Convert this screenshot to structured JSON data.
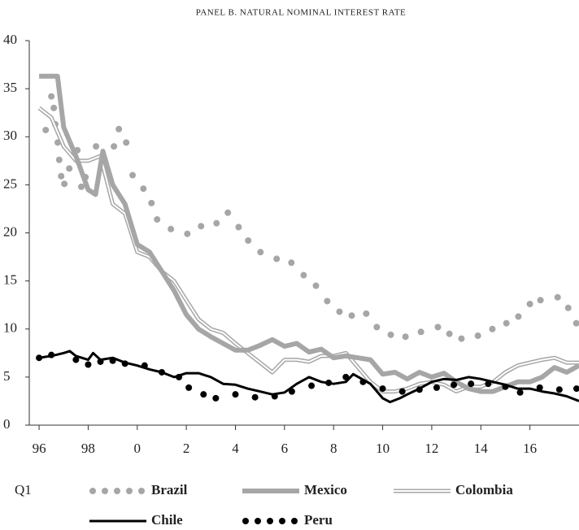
{
  "chart_data": {
    "type": "line",
    "title": "PANEL B. NATURAL NOMINAL INTEREST RATE",
    "x_note": "Q1",
    "xlim": [
      1995.6,
      2018
    ],
    "ylim": [
      0,
      40
    ],
    "xticks": [
      {
        "value": 1996,
        "label": "96"
      },
      {
        "value": 1998,
        "label": "98"
      },
      {
        "value": 2000,
        "label": "0"
      },
      {
        "value": 2002,
        "label": "2"
      },
      {
        "value": 2004,
        "label": "4"
      },
      {
        "value": 2006,
        "label": "6"
      },
      {
        "value": 2008,
        "label": "8"
      },
      {
        "value": 2010,
        "label": "10"
      },
      {
        "value": 2012,
        "label": "12"
      },
      {
        "value": 2014,
        "label": "14"
      },
      {
        "value": 2016,
        "label": "16"
      }
    ],
    "yticks": [
      0,
      5,
      10,
      15,
      20,
      25,
      30,
      35,
      40
    ],
    "series": [
      {
        "name": "Brazil",
        "color": "#a6a6a6",
        "style": "dotted",
        "x": [
          1996.27,
          1996.5,
          1996.6,
          1996.66,
          1996.76,
          1996.82,
          1996.9,
          1997.03,
          1997.23,
          1997.56,
          1997.72,
          1997.89,
          1998.32,
          1998.62,
          1999.05,
          1999.25,
          1999.55,
          1999.81,
          2000.25,
          2000.58,
          2000.81,
          2001.37,
          2002.04,
          2002.6,
          2003.23,
          2003.69,
          2004.13,
          2004.52,
          2005.02,
          2005.68,
          2006.28,
          2006.78,
          2007.28,
          2007.74,
          2008.24,
          2008.74,
          2009.33,
          2009.76,
          2010.33,
          2010.93,
          2011.56,
          2012.25,
          2012.72,
          2013.21,
          2013.88,
          2014.47,
          2015.04,
          2015.53,
          2016.0,
          2016.43,
          2017.13,
          2017.56,
          2017.89
        ],
        "values": [
          30.7,
          34.2,
          33.0,
          31.3,
          29.4,
          27.6,
          25.9,
          25.1,
          26.7,
          28.6,
          24.8,
          25.8,
          29.0,
          27.9,
          29.0,
          30.8,
          29.4,
          26.0,
          24.6,
          23.1,
          21.4,
          20.4,
          19.9,
          20.7,
          21.0,
          22.1,
          20.6,
          19.2,
          18.0,
          17.3,
          16.9,
          15.6,
          14.5,
          12.9,
          11.8,
          11.4,
          11.6,
          10.2,
          9.4,
          9.2,
          9.7,
          10.2,
          9.5,
          9.0,
          9.3,
          10.0,
          10.6,
          11.3,
          12.6,
          13.0,
          13.3,
          12.2,
          10.6
        ]
      },
      {
        "name": "Mexico",
        "color": "#a6a6a6",
        "style": "thick",
        "x": [
          1996,
          1996.75,
          1997,
          1997.5,
          1998,
          1998.3,
          1998.6,
          1999,
          1999.5,
          2000,
          2000.5,
          2001,
          2001.5,
          2002,
          2002.5,
          2003,
          2003.5,
          2004,
          2004.5,
          2005,
          2005.5,
          2006,
          2006.5,
          2007,
          2007.5,
          2008,
          2008.5,
          2009,
          2009.5,
          2010,
          2010.5,
          2011,
          2011.5,
          2012,
          2012.5,
          2013,
          2013.5,
          2014,
          2014.5,
          2015,
          2015.5,
          2016,
          2016.5,
          2017,
          2017.5,
          2018
        ],
        "values": [
          36.3,
          36.3,
          31,
          28,
          24.5,
          24,
          28.5,
          25,
          23,
          18.8,
          18,
          16,
          14,
          11.5,
          10,
          9.2,
          8.5,
          7.8,
          7.8,
          8.3,
          8.9,
          8.2,
          8.5,
          7.6,
          7.9,
          7,
          7.2,
          7,
          6.8,
          5.3,
          5.5,
          4.8,
          5.5,
          5.0,
          5.4,
          4.5,
          3.8,
          3.5,
          3.5,
          4.0,
          4.5,
          4.5,
          5.0,
          6.0,
          5.5,
          6.2
        ]
      },
      {
        "name": "Colombia",
        "color": "#a6a6a6",
        "style": "double",
        "x": [
          1996,
          1996.5,
          1997,
          1997.5,
          1998,
          1998.5,
          1999,
          1999.5,
          2000,
          2000.5,
          2001,
          2001.5,
          2002,
          2002.5,
          2003,
          2003.5,
          2004,
          2004.5,
          2005,
          2005.5,
          2006,
          2006.5,
          2007,
          2007.5,
          2008,
          2008.5,
          2009,
          2009.5,
          2010,
          2010.5,
          2011,
          2011.5,
          2012,
          2012.5,
          2013,
          2013.5,
          2014,
          2014.5,
          2015,
          2015.5,
          2016,
          2016.5,
          2017,
          2017.5,
          2018
        ],
        "values": [
          33,
          32,
          29,
          27.5,
          27.5,
          28,
          23,
          22,
          18,
          17.5,
          16,
          15,
          13,
          11,
          10,
          9.6,
          8.5,
          7.5,
          6.5,
          5.5,
          6.8,
          6.8,
          6.6,
          7.2,
          7.2,
          7.5,
          6,
          4.5,
          3.5,
          3.5,
          3.8,
          4.3,
          4.5,
          4.2,
          3.5,
          4.0,
          4.0,
          4.5,
          5.5,
          6.2,
          6.5,
          6.8,
          7,
          6.5,
          6.5
        ]
      },
      {
        "name": "Chile",
        "color": "#000000",
        "style": "solid",
        "x": [
          1996,
          1996.5,
          1997,
          1997.25,
          1997.5,
          1998,
          1998.2,
          1998.5,
          1999,
          1999.5,
          2000,
          2000.5,
          2001,
          2001.5,
          2002,
          2002.5,
          2003,
          2003.5,
          2004,
          2004.5,
          2005,
          2005.5,
          2006,
          2006.5,
          2007,
          2007.5,
          2008,
          2008.5,
          2008.8,
          2009.5,
          2010,
          2010.3,
          2010.7,
          2011,
          2011.5,
          2012,
          2012.5,
          2013,
          2013.5,
          2014,
          2014.5,
          2015,
          2015.5,
          2016,
          2016.5,
          2017,
          2017.5,
          2018
        ],
        "values": [
          7.0,
          7.2,
          7.5,
          7.7,
          7.2,
          6.8,
          7.5,
          6.8,
          7.0,
          6.5,
          6.2,
          5.8,
          5.5,
          5.0,
          5.4,
          5.4,
          5.0,
          4.3,
          4.2,
          3.8,
          3.5,
          3.2,
          3.4,
          4.3,
          5.0,
          4.5,
          4.3,
          4.5,
          5.3,
          4.3,
          2.8,
          2.4,
          2.8,
          3.2,
          3.8,
          4.5,
          4.8,
          4.7,
          5.0,
          4.8,
          4.5,
          4.2,
          3.8,
          3.8,
          3.5,
          3.3,
          3.0,
          2.5
        ]
      },
      {
        "name": "Peru",
        "color": "#000000",
        "style": "dotted",
        "x": [
          1996,
          1996.5,
          1997.5,
          1998,
          1998.5,
          1999,
          1999.5,
          2000.3,
          2001,
          2001.7,
          2002.1,
          2002.7,
          2003.2,
          2004,
          2004.8,
          2005.6,
          2006.3,
          2007.1,
          2007.8,
          2008.5,
          2009.2,
          2010,
          2010.8,
          2011.5,
          2012.2,
          2012.9,
          2013.6,
          2014.3,
          2015,
          2015.6,
          2016.4,
          2017.2,
          2017.9
        ],
        "values": [
          7.0,
          7.3,
          6.8,
          6.3,
          6.6,
          6.7,
          6.4,
          6.2,
          5.5,
          5.0,
          3.9,
          3.2,
          2.8,
          3.2,
          2.9,
          3.0,
          3.5,
          4.1,
          4.4,
          5.0,
          4.5,
          3.8,
          3.5,
          3.7,
          3.9,
          4.2,
          4.3,
          4.3,
          4.0,
          3.4,
          3.9,
          3.7,
          3.8
        ]
      }
    ]
  }
}
